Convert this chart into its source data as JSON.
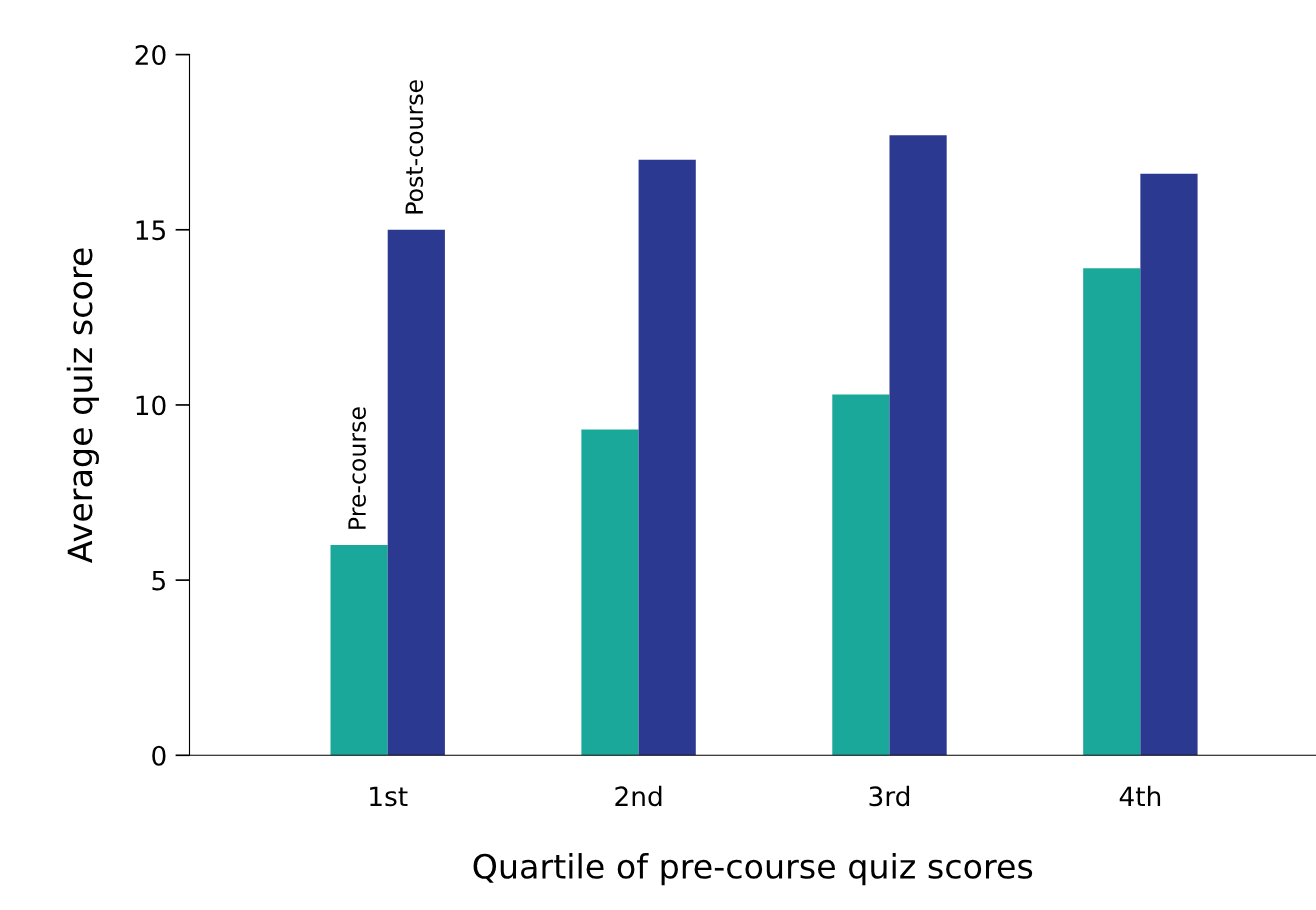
{
  "chart_data": {
    "type": "bar",
    "xlabel": "Quartile of pre-course quiz scores",
    "ylabel": "Average quiz score",
    "categories": [
      "1st",
      "2nd",
      "3rd",
      "4th"
    ],
    "series": [
      {
        "name": "Pre-course",
        "color": "#1aa89a",
        "values": [
          6.0,
          9.3,
          10.3,
          13.9
        ]
      },
      {
        "name": "Post-course",
        "color": "#2b3990",
        "values": [
          15.0,
          17.0,
          17.7,
          16.6
        ]
      }
    ],
    "ylim": [
      0,
      20
    ],
    "yticks": [
      0,
      5,
      10,
      15,
      20
    ],
    "grid": false,
    "legend": false
  }
}
